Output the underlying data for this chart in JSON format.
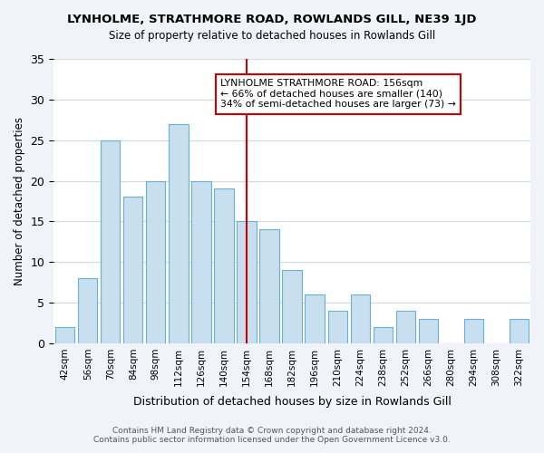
{
  "title": "LYNHOLME, STRATHMORE ROAD, ROWLANDS GILL, NE39 1JD",
  "subtitle": "Size of property relative to detached houses in Rowlands Gill",
  "xlabel": "Distribution of detached houses by size in Rowlands Gill",
  "ylabel": "Number of detached properties",
  "bar_labels": [
    "42sqm",
    "56sqm",
    "70sqm",
    "84sqm",
    "98sqm",
    "112sqm",
    "126sqm",
    "140sqm",
    "154sqm",
    "168sqm",
    "182sqm",
    "196sqm",
    "210sqm",
    "224sqm",
    "238sqm",
    "252sqm",
    "266sqm",
    "280sqm",
    "294sqm",
    "308sqm",
    "322sqm"
  ],
  "bar_values": [
    2,
    8,
    25,
    18,
    20,
    27,
    20,
    19,
    15,
    14,
    9,
    6,
    4,
    6,
    2,
    4,
    3,
    0,
    3,
    0,
    3
  ],
  "bar_color": "#c8dff0",
  "bar_edge_color": "#6aafd6",
  "vline_x": 8,
  "vline_color": "#cc0000",
  "annotation_line1": "LYNHOLME STRATHMORE ROAD: 156sqm",
  "annotation_line2": "← 66% of detached houses are smaller (140)",
  "annotation_line3": "34% of semi-detached houses are larger (73) →",
  "annotation_box_edge": "#cc0000",
  "ylim": [
    0,
    35
  ],
  "yticks": [
    0,
    5,
    10,
    15,
    20,
    25,
    30,
    35
  ],
  "footnote1": "Contains HM Land Registry data © Crown copyright and database right 2024.",
  "footnote2": "Contains public sector information licensed under the Open Government Licence v3.0.",
  "bg_color": "#f0f4f8",
  "plot_bg_color": "#ffffff",
  "grid_color": "#d0d8e0"
}
